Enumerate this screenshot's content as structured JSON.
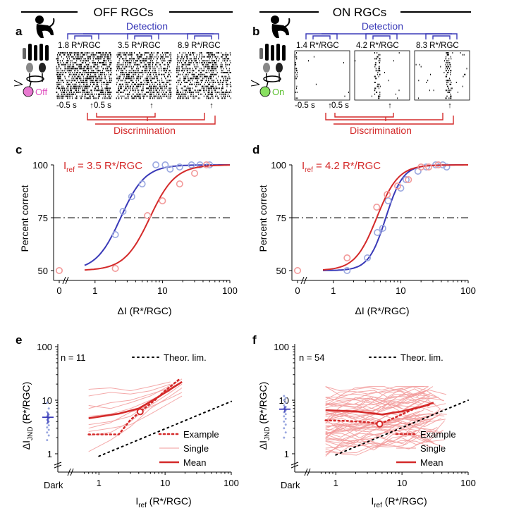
{
  "sections": [
    {
      "title": "OFF RGCs",
      "cell_label": "Off",
      "cell_color": "#e878d0"
    },
    {
      "title": "ON RGCs",
      "cell_label": "On",
      "cell_color": "#88e060"
    }
  ],
  "colors": {
    "detection": "#3a3ab8",
    "discrimination": "#d42a2a",
    "pale_red": "#f29a9a",
    "pale_blue": "#9aa8e0"
  },
  "panels": {
    "a": {
      "letter": "a",
      "detection_label": "Detection",
      "discrimination_label": "Discrimination",
      "rasters": [
        "1.8 R*/RGC",
        "3.5 R*/RGC",
        "8.9 R*/RGC"
      ],
      "time_labels": [
        "-0.5 s",
        "0.5 s"
      ]
    },
    "b": {
      "letter": "b",
      "detection_label": "Detection",
      "discrimination_label": "Discrimination",
      "rasters": [
        "1.4 R*/RGC",
        "4.2 R*/RGC",
        "8.3 R*/RGC"
      ],
      "time_labels": [
        "-0.5 s",
        "0.5 s"
      ]
    },
    "c": {
      "letter": "c",
      "iref_text": "I",
      "iref_sub": "ref",
      "iref_value": " = 3.5 R*/RGC",
      "ylabel": "Percent correct",
      "xlabel": "ΔI (R*/RGC)"
    },
    "d": {
      "letter": "d",
      "iref_text": "I",
      "iref_sub": "ref",
      "iref_value": " = 4.2 R*/RGC",
      "ylabel": "Percent correct",
      "xlabel": "ΔI (R*/RGC)"
    },
    "e": {
      "letter": "e",
      "n_label": "n = 11",
      "ylabel_main": "ΔI",
      "ylabel_sub": "JND",
      "ylabel_unit": " (R*/RGC)",
      "xlabel_main": "I",
      "xlabel_sub": "ref",
      "xlabel_unit": " (R*/RGC)",
      "dark_label": "Dark",
      "legend": [
        "Theor. lim.",
        "Example",
        "Single",
        "Mean"
      ]
    },
    "f": {
      "letter": "f",
      "n_label": "n = 54",
      "ylabel_main": "ΔI",
      "ylabel_sub": "JND",
      "ylabel_unit": " (R*/RGC)",
      "xlabel_main": "I",
      "xlabel_sub": "ref",
      "xlabel_unit": " (R*/RGC)",
      "dark_label": "Dark",
      "legend": [
        "Theor. lim.",
        "Example",
        "Single",
        "Mean"
      ]
    }
  },
  "chart_data": [
    {
      "panel": "c",
      "type": "scatter",
      "x_scale": "log",
      "xlim": [
        0.5,
        100
      ],
      "ylim": [
        50,
        100
      ],
      "xticks": [
        "0",
        "1",
        "10",
        "100"
      ],
      "yticks": [
        "50",
        "75",
        "100"
      ],
      "threshold_line": 75,
      "series": [
        {
          "name": "Detection",
          "color": "#3a3ab8",
          "points": [
            [
              2,
              67
            ],
            [
              2.6,
              78
            ],
            [
              3.5,
              85
            ],
            [
              5,
              91
            ],
            [
              8,
              100
            ],
            [
              11,
              100
            ],
            [
              13,
              98
            ],
            [
              18,
              99
            ],
            [
              27,
              100
            ],
            [
              36,
              100
            ],
            [
              50,
              100
            ]
          ],
          "fit": {
            "x50": 2.4,
            "slope": 2.4
          }
        },
        {
          "name": "Discrimination",
          "color": "#d42a2a",
          "points": [
            [
              0,
              50
            ],
            [
              2,
              51
            ],
            [
              6,
              76
            ],
            [
              10,
              83
            ],
            [
              18,
              91
            ],
            [
              30,
              96
            ],
            [
              45,
              100
            ]
          ],
          "fit": {
            "x50": 6.5,
            "slope": 2.3
          }
        }
      ]
    },
    {
      "panel": "d",
      "type": "scatter",
      "x_scale": "log",
      "xlim": [
        0.5,
        100
      ],
      "ylim": [
        50,
        100
      ],
      "xticks": [
        "0",
        "1",
        "10",
        "100"
      ],
      "yticks": [
        "50",
        "75",
        "100"
      ],
      "threshold_line": 75,
      "series": [
        {
          "name": "Detection",
          "color": "#3a3ab8",
          "points": [
            [
              1.6,
              50
            ],
            [
              3.2,
              56
            ],
            [
              4.5,
              68
            ],
            [
              5.4,
              70
            ],
            [
              6.5,
              83
            ],
            [
              10,
              89
            ],
            [
              12,
              93
            ],
            [
              18,
              97
            ],
            [
              24,
              99
            ],
            [
              33,
              100
            ],
            [
              42,
              100
            ],
            [
              48,
              99
            ]
          ],
          "fit": {
            "x50": 6.0,
            "slope": 3.4
          }
        },
        {
          "name": "Discrimination",
          "color": "#d42a2a",
          "points": [
            [
              0,
              50
            ],
            [
              1.6,
              56
            ],
            [
              4.4,
              80
            ],
            [
              6.3,
              86
            ],
            [
              9,
              90
            ],
            [
              13,
              93
            ],
            [
              20,
              99
            ],
            [
              26,
              99
            ],
            [
              36,
              100
            ]
          ],
          "fit": {
            "x50": 4.4,
            "slope": 2.7
          }
        }
      ]
    },
    {
      "panel": "e",
      "type": "line",
      "x_scale": "log",
      "y_scale": "log",
      "xlim": [
        0.5,
        100
      ],
      "ylim": [
        0.5,
        100
      ],
      "xticks": [
        "1",
        "10",
        "100"
      ],
      "yticks": [
        "1",
        "10",
        "100"
      ],
      "dark_mean": 4.8,
      "dark_sem": [
        3.7,
        5.9
      ],
      "dark_points": [
        1.8,
        2.2,
        2.5,
        2.8,
        3.1,
        3.4,
        3.7,
        4.0,
        4.3,
        4.6,
        5.0,
        5.4,
        6.0,
        7.0,
        9.0
      ],
      "theoretical_limit": [
        [
          1,
          0.9
        ],
        [
          100,
          9.5
        ]
      ],
      "example": [
        [
          0.7,
          2.3
        ],
        [
          1,
          2.3
        ],
        [
          2,
          2.3
        ],
        [
          3,
          4.3
        ],
        [
          4.2,
          6.1
        ],
        [
          7,
          10
        ],
        [
          10,
          15
        ],
        [
          16,
          24
        ]
      ],
      "example_marker": [
        4.2,
        6.1
      ],
      "mean": [
        [
          0.7,
          4.6
        ],
        [
          2,
          5.6
        ],
        [
          4,
          7
        ],
        [
          7,
          10.5
        ],
        [
          12,
          16
        ],
        [
          18,
          22
        ]
      ],
      "single": [
        [
          [
            0.7,
            7
          ],
          [
            1.5,
            9
          ],
          [
            3,
            10
          ],
          [
            6,
            13
          ],
          [
            12,
            17
          ],
          [
            18,
            22
          ]
        ],
        [
          [
            0.7,
            3.5
          ],
          [
            1.5,
            4
          ],
          [
            3,
            5
          ],
          [
            6,
            9
          ],
          [
            12,
            18
          ],
          [
            18,
            25
          ]
        ],
        [
          [
            0.7,
            12
          ],
          [
            1.5,
            14
          ],
          [
            3,
            13
          ],
          [
            6,
            15
          ],
          [
            12,
            20
          ]
        ],
        [
          [
            0.7,
            2.2
          ],
          [
            1.5,
            2.5
          ],
          [
            3,
            4
          ],
          [
            6,
            8
          ],
          [
            12,
            14
          ],
          [
            18,
            20
          ]
        ],
        [
          [
            0.7,
            5
          ],
          [
            1.5,
            5.5
          ],
          [
            3,
            7
          ],
          [
            6,
            10
          ],
          [
            12,
            15
          ]
        ],
        [
          [
            0.7,
            16
          ],
          [
            1.5,
            17
          ],
          [
            3,
            15
          ],
          [
            6,
            18
          ],
          [
            12,
            22
          ]
        ],
        [
          [
            0.7,
            1.1
          ],
          [
            1.5,
            1.8
          ],
          [
            3,
            3.2
          ],
          [
            6,
            7
          ],
          [
            12,
            12
          ],
          [
            18,
            17
          ]
        ],
        [
          [
            0.7,
            3
          ],
          [
            1.5,
            3.8
          ],
          [
            3,
            6
          ],
          [
            6,
            7.5
          ],
          [
            12,
            11
          ],
          [
            18,
            14
          ]
        ],
        [
          [
            0.7,
            8
          ],
          [
            1.5,
            7
          ],
          [
            3,
            9
          ],
          [
            6,
            12
          ],
          [
            12,
            19
          ]
        ],
        [
          [
            0.7,
            2.6
          ],
          [
            1.5,
            3
          ],
          [
            3,
            3.5
          ],
          [
            6,
            5.5
          ],
          [
            12,
            9
          ],
          [
            18,
            12
          ]
        ]
      ]
    },
    {
      "panel": "f",
      "type": "line",
      "x_scale": "log",
      "y_scale": "log",
      "xlim": [
        0.5,
        100
      ],
      "ylim": [
        0.5,
        100
      ],
      "xticks": [
        "1",
        "10",
        "100"
      ],
      "yticks": [
        "1",
        "10",
        "100"
      ],
      "dark_mean": 6.8,
      "dark_sem": [
        5.9,
        7.7
      ],
      "dark_points": [
        2.0,
        2.5,
        3.0,
        3.5,
        4.0,
        4.5,
        5.0,
        5.5,
        6.0,
        6.5,
        7.0,
        7.5,
        8.0,
        9.0,
        10.0,
        11.0,
        12.0
      ],
      "theoretical_limit": [
        [
          1,
          0.95
        ],
        [
          100,
          10
        ]
      ],
      "example": [
        [
          0.7,
          4.2
        ],
        [
          1.5,
          4.1
        ],
        [
          3,
          3.9
        ],
        [
          4.6,
          3.6
        ],
        [
          8,
          4.8
        ],
        [
          14,
          6.6
        ],
        [
          20,
          7.6
        ],
        [
          28,
          8.4
        ]
      ],
      "example_marker": [
        4.6,
        3.6
      ],
      "mean": [
        [
          0.7,
          6.5
        ],
        [
          2,
          6.2
        ],
        [
          5,
          5.4
        ],
        [
          10,
          6.2
        ],
        [
          20,
          7.6
        ],
        [
          30,
          9
        ]
      ],
      "single_generator": {
        "count": 54,
        "seed": 7
      }
    }
  ]
}
